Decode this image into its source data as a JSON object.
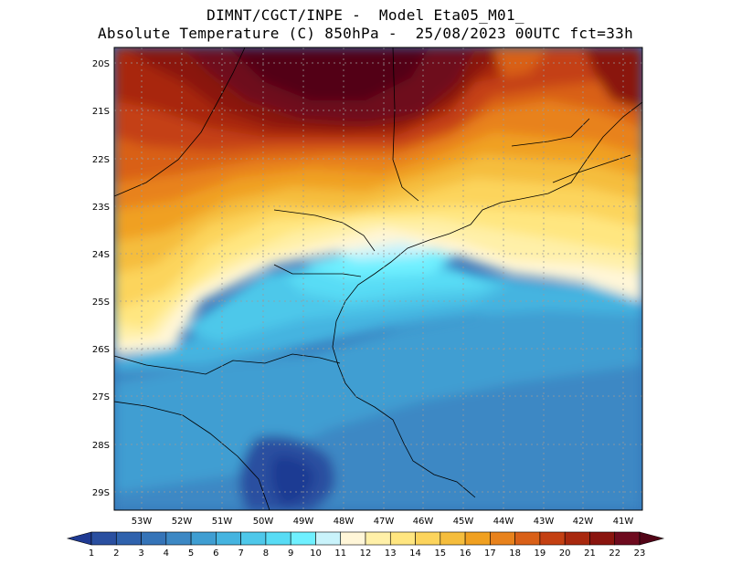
{
  "header": {
    "line1": "DIMNT/CGCT/INPE -  Model Eta05_M01_",
    "line2": "Absolute Temperature (C) 850hPa -  25/08/2023 00UTC fct=33h"
  },
  "map": {
    "lat_labels": [
      "20S",
      "21S",
      "22S",
      "23S",
      "24S",
      "25S",
      "26S",
      "27S",
      "28S",
      "29S"
    ],
    "lon_labels": [
      "53W",
      "52W",
      "51W",
      "50W",
      "49W",
      "48W",
      "47W",
      "46W",
      "45W",
      "44W",
      "43W",
      "42W",
      "41W"
    ],
    "lat_range": [
      -29.4,
      -19.9
    ],
    "lon_range": [
      -53.7,
      -40.6
    ],
    "grid": "dotted",
    "field": "temperature 850hPa (C)"
  },
  "colorbar": {
    "labels": [
      "1",
      "2",
      "3",
      "4",
      "5",
      "6",
      "7",
      "8",
      "9",
      "10",
      "11",
      "12",
      "13",
      "14",
      "15",
      "16",
      "17",
      "18",
      "19",
      "20",
      "21",
      "22",
      "23"
    ],
    "colors": [
      "#1f3a93",
      "#2a4fa0",
      "#2f62ad",
      "#3574b8",
      "#3c88c4",
      "#3f9ed2",
      "#45b4e0",
      "#4ec8ea",
      "#58dcf5",
      "#6ff0ff",
      "#c9f3fb",
      "#fff6d8",
      "#fff0a8",
      "#ffe680",
      "#fcd45c",
      "#f5bd3c",
      "#f0a020",
      "#e8821c",
      "#d96018",
      "#c44012",
      "#a8280e",
      "#8a140e",
      "#6e0a1e",
      "#520417"
    ],
    "arrows": "both"
  }
}
